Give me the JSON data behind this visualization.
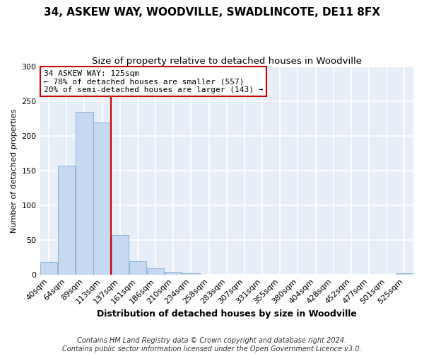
{
  "title": "34, ASKEW WAY, WOODVILLE, SWADLINCOTE, DE11 8FX",
  "subtitle": "Size of property relative to detached houses in Woodville",
  "xlabel": "Distribution of detached houses by size in Woodville",
  "ylabel": "Number of detached properties",
  "bar_labels": [
    "40sqm",
    "64sqm",
    "89sqm",
    "113sqm",
    "137sqm",
    "161sqm",
    "186sqm",
    "210sqm",
    "234sqm",
    "258sqm",
    "283sqm",
    "307sqm",
    "331sqm",
    "355sqm",
    "380sqm",
    "404sqm",
    "428sqm",
    "452sqm",
    "477sqm",
    "501sqm",
    "525sqm"
  ],
  "bar_values": [
    18,
    157,
    235,
    219,
    57,
    19,
    9,
    4,
    2,
    0,
    0,
    0,
    0,
    0,
    0,
    0,
    0,
    0,
    0,
    0,
    2
  ],
  "bar_color": "#c6d9f0",
  "bar_edge_color": "#7eadd4",
  "vline_color": "#cc0000",
  "annotation_title": "34 ASKEW WAY: 125sqm",
  "annotation_line1": "← 78% of detached houses are smaller (557)",
  "annotation_line2": "20% of semi-detached houses are larger (143) →",
  "annotation_box_facecolor": "#ffffff",
  "annotation_box_edgecolor": "#cc0000",
  "ylim": [
    0,
    300
  ],
  "yticks": [
    0,
    50,
    100,
    150,
    200,
    250,
    300
  ],
  "footer1": "Contains HM Land Registry data © Crown copyright and database right 2024.",
  "footer2": "Contains public sector information licensed under the Open Government Licence v3.0.",
  "fig_facecolor": "#ffffff",
  "plot_facecolor": "#e8eef8",
  "grid_color": "#ffffff",
  "title_fontsize": 11,
  "subtitle_fontsize": 9.5,
  "xlabel_fontsize": 9,
  "ylabel_fontsize": 8,
  "footer_fontsize": 7,
  "annot_fontsize": 8
}
